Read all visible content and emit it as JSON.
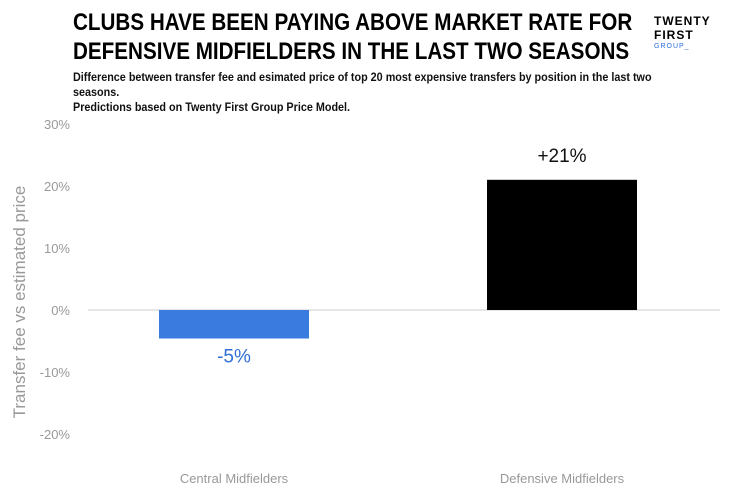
{
  "header": {
    "title_line1": "CLUBS HAVE BEEN PAYING ABOVE MARKET RATE FOR",
    "title_line2": "DEFENSIVE MIDFIELDERS IN THE LAST TWO SEASONS",
    "subtitle_line1": "Difference between transfer fee and esimated price of top 20 most expensive transfers by position in the last two seasons.",
    "subtitle_line2": "Predictions based on Twenty First Group Price Model."
  },
  "logo": {
    "line1": "TWENTY",
    "line2": "FIRST",
    "line3": "GROUP_"
  },
  "colors": {
    "positive_bar": "#000000",
    "negative_bar": "#3a7be0",
    "negative_label": "#2f6fd6",
    "axis_text": "#999999",
    "gridline": "#e6e6e6",
    "zero_line": "#cccccc",
    "logo_accent": "#2a6fdb"
  },
  "chart_data": {
    "type": "bar",
    "categories": [
      "Central Midfielders",
      "Defensive Midfielders"
    ],
    "values": [
      -4.6,
      21
    ],
    "data_labels": [
      "-5%",
      "+21%"
    ],
    "ylabel": "Transfer fee vs estimated price",
    "xlabel": "",
    "ylim": [
      -20,
      30
    ],
    "yticks": [
      30,
      20,
      10,
      0,
      -10,
      -20
    ],
    "ytick_labels": [
      "30%",
      "20%",
      "10%",
      "0%",
      "-10%",
      "-20%"
    ],
    "grid": false,
    "legend": "none"
  }
}
